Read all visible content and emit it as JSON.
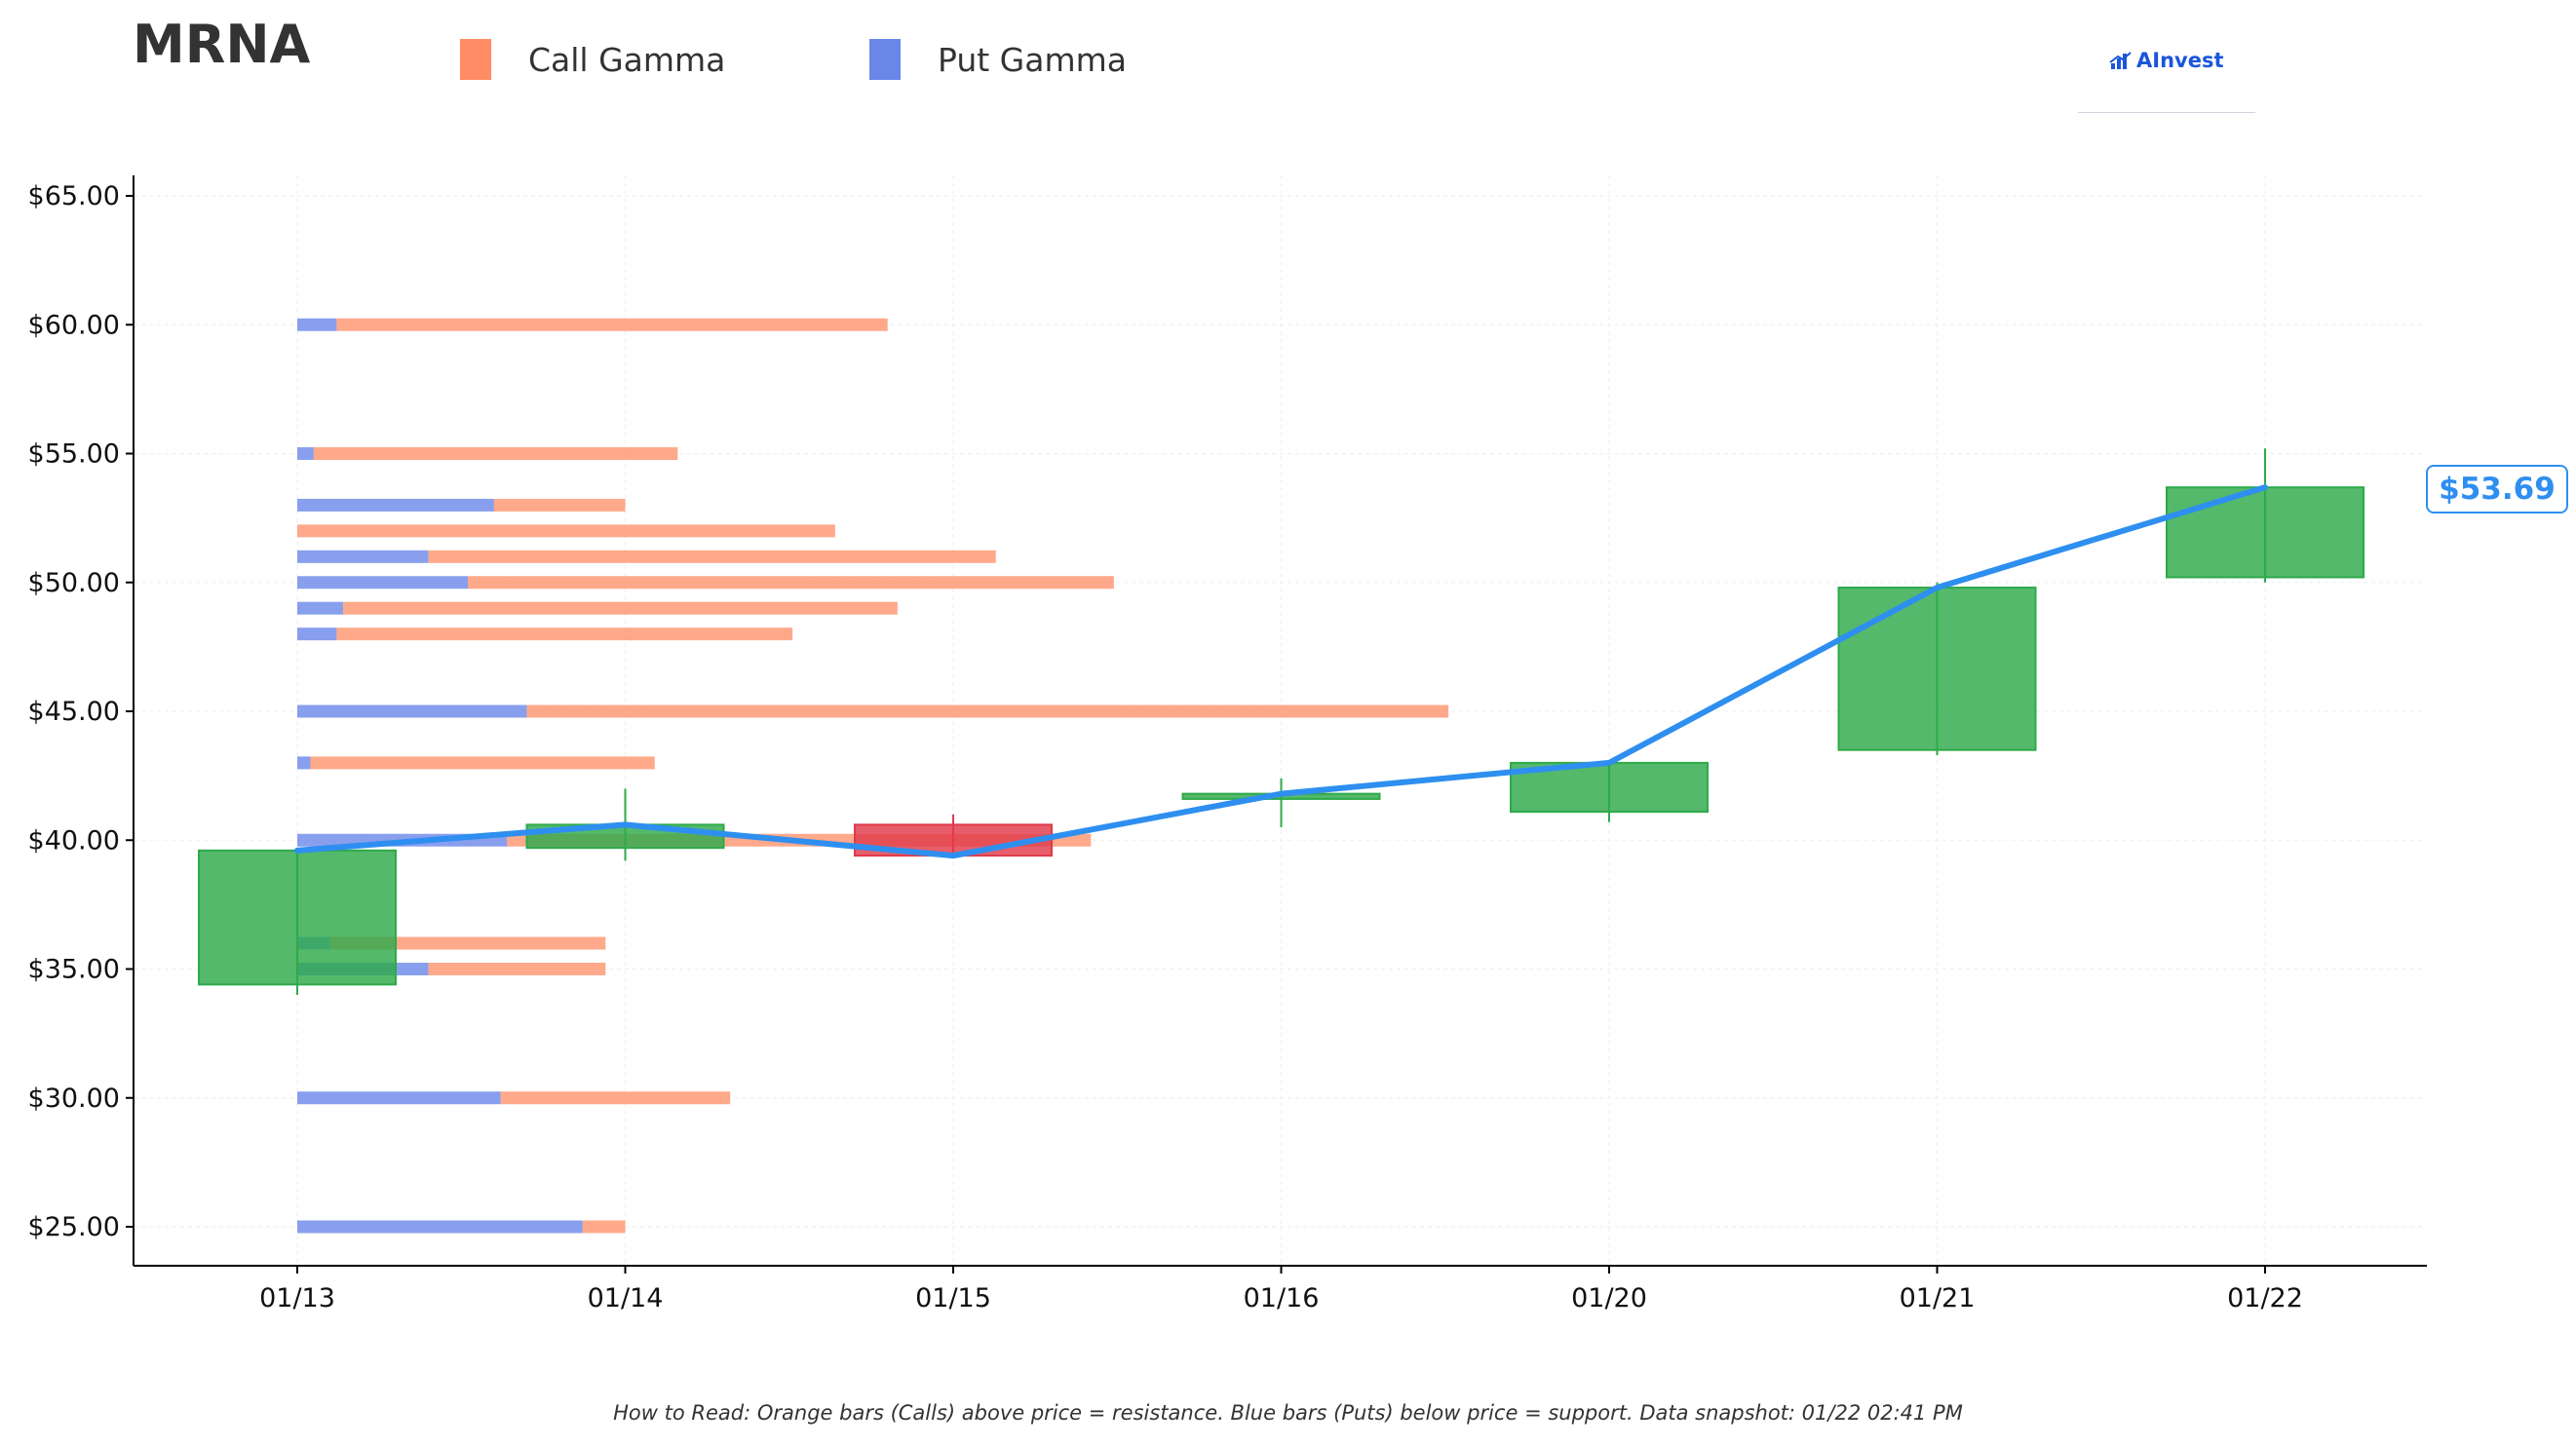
{
  "ticker": "MRNA",
  "legend": {
    "call_label": "Call Gamma",
    "put_label": "Put Gamma",
    "call_color": "#ff8c64",
    "put_color": "#6a87e8"
  },
  "logo": {
    "text": "AInvest",
    "icon": "bar-chart-logo-icon"
  },
  "price_badge": "$53.69",
  "footnote": "How to Read: Orange bars (Calls) above price = resistance. Blue bars (Puts) below price = support. Data snapshot: 01/22 02:41 PM",
  "chart_data": {
    "type": "candlestick",
    "title": "MRNA",
    "xlabel": "",
    "ylabel": "",
    "categories": [
      "01/13",
      "01/14",
      "01/15",
      "01/16",
      "01/20",
      "01/21",
      "01/22"
    ],
    "ylim": [
      23.5,
      66
    ],
    "yticks": [
      25,
      30,
      35,
      40,
      45,
      50,
      55,
      60,
      65
    ],
    "yticklabels": [
      "$25.00",
      "$30.00",
      "$35.00",
      "$40.00",
      "$45.00",
      "$50.00",
      "$55.00",
      "$60.00",
      "$65.00"
    ],
    "grid": true,
    "candles": [
      {
        "date": "01/13",
        "open": 34.4,
        "close": 39.6,
        "high": 39.6,
        "low": 34.0
      },
      {
        "date": "01/14",
        "open": 39.7,
        "close": 40.6,
        "high": 42.0,
        "low": 39.2
      },
      {
        "date": "01/15",
        "open": 40.6,
        "close": 39.4,
        "high": 41.0,
        "low": 39.3
      },
      {
        "date": "01/16",
        "open": 41.6,
        "close": 41.8,
        "high": 42.4,
        "low": 40.5
      },
      {
        "date": "01/20",
        "open": 41.1,
        "close": 43.0,
        "high": 43.0,
        "low": 40.7
      },
      {
        "date": "01/21",
        "open": 43.5,
        "close": 49.8,
        "high": 50.0,
        "low": 43.3
      },
      {
        "date": "01/22",
        "open": 50.2,
        "close": 53.69,
        "high": 55.2,
        "low": 50.0
      }
    ],
    "price_line": {
      "name": "Price",
      "color": "#2e8ff0",
      "values": [
        39.6,
        40.6,
        39.4,
        41.8,
        43.0,
        49.8,
        53.69
      ]
    },
    "gamma_units": "fraction of axis category spacing",
    "gamma_levels": [
      {
        "strike": 60,
        "put": 0.12,
        "call": 1.68
      },
      {
        "strike": 55,
        "put": 0.05,
        "call": 1.11
      },
      {
        "strike": 53,
        "put": 0.6,
        "call": 0.4
      },
      {
        "strike": 52,
        "put": 0.0,
        "call": 1.64
      },
      {
        "strike": 51,
        "put": 0.4,
        "call": 1.73
      },
      {
        "strike": 50,
        "put": 0.52,
        "call": 1.97
      },
      {
        "strike": 49,
        "put": 0.14,
        "call": 1.69
      },
      {
        "strike": 48,
        "put": 0.12,
        "call": 1.39
      },
      {
        "strike": 45,
        "put": 0.7,
        "call": 2.81
      },
      {
        "strike": 43,
        "put": 0.04,
        "call": 1.05
      },
      {
        "strike": 40,
        "put": 0.64,
        "call": 1.78
      },
      {
        "strike": 36,
        "put": 0.1,
        "call": 0.84
      },
      {
        "strike": 35,
        "put": 0.4,
        "call": 0.54
      },
      {
        "strike": 30,
        "put": 0.62,
        "call": 0.7
      },
      {
        "strike": 25,
        "put": 0.87,
        "call": 0.13
      }
    ],
    "up_color": "#2eaa4a",
    "down_color": "#e03a4a"
  }
}
